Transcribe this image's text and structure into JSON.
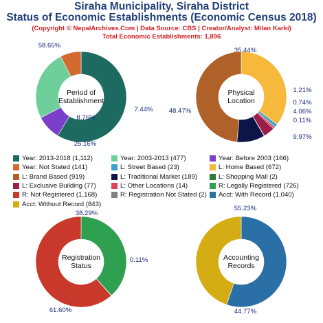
{
  "header": {
    "title_line1": "Siraha Municipality, Siraha District",
    "title_line2": "Status of Economic Establishments (Economic Census 2018)",
    "copyright": "(Copyright © NepalArchives.Com | Data Source: CBS | Creator/Analyst: Milan Karki)",
    "total": "Total Economic Establishments: 1,896"
  },
  "chart_data": [
    {
      "type": "pie",
      "title": "Period of Establishment",
      "center_label": [
        "Period of",
        "Establishment"
      ],
      "slices": [
        {
          "label": "Year: 2013-2018",
          "value": 1112,
          "percent_label": "58.65%",
          "color": "#1d6b60"
        },
        {
          "label": "Year: Before 2003",
          "value": 166,
          "percent_label": "8.76%",
          "color": "#7b3fc9"
        },
        {
          "label": "Year: 2003-2013",
          "value": 477,
          "percent_label": "25.16%",
          "color": "#6fcf9b"
        },
        {
          "label": "Year: Not Stated",
          "value": 141,
          "percent_label": "7.44%",
          "color": "#d26a2d"
        }
      ]
    },
    {
      "type": "pie",
      "title": "Physical Location",
      "center_label": [
        "Physical",
        "Location"
      ],
      "slices": [
        {
          "label": "L: Home Based",
          "value": 672,
          "percent_label": "35.44%",
          "color": "#f6b93b"
        },
        {
          "label": "L: Street Based",
          "value": 23,
          "percent_label": "1.21%",
          "color": "#3ba0cc"
        },
        {
          "label": "L: Other Locations",
          "value": 14,
          "percent_label": "0.74%",
          "color": "#e0405a"
        },
        {
          "label": "L: Exclusive Building",
          "value": 77,
          "percent_label": "4.06%",
          "color": "#9b1f48"
        },
        {
          "label": "L: Shopping Mall",
          "value": 2,
          "percent_label": "0.11%",
          "color": "#2e7d32"
        },
        {
          "label": "L: Traditional Market",
          "value": 189,
          "percent_label": "9.97%",
          "color": "#0c1448"
        },
        {
          "label": "L: Brand Based",
          "value": 919,
          "percent_label": "48.47%",
          "color": "#b0612a"
        }
      ]
    },
    {
      "type": "pie",
      "title": "Registration Status",
      "center_label": [
        "Registration",
        "Status"
      ],
      "slices": [
        {
          "label": "R: Legally Registered",
          "value": 726,
          "percent_label": "38.29%",
          "color": "#2ea04f"
        },
        {
          "label": "R: Registration Not Stated",
          "value": 2,
          "percent_label": "0.11%",
          "color": "#808080"
        },
        {
          "label": "R: Not Registered",
          "value": 1168,
          "percent_label": "61.60%",
          "color": "#c8392b"
        }
      ]
    },
    {
      "type": "pie",
      "title": "Accounting Records",
      "center_label": [
        "Accounting",
        "Records"
      ],
      "slices": [
        {
          "label": "Acct: With Record",
          "value": 1040,
          "percent_label": "55.23%",
          "color": "#2a6fa5"
        },
        {
          "label": "Acct: Without Record",
          "value": 843,
          "percent_label": "44.77%",
          "color": "#d4ac13"
        }
      ]
    }
  ],
  "legend": [
    {
      "text": "Year: 2013-2018 (1,112)",
      "color": "#1d6b60"
    },
    {
      "text": "Year: 2003-2013 (477)",
      "color": "#6fcf9b"
    },
    {
      "text": "Year: Before 2003 (166)",
      "color": "#7b3fc9"
    },
    {
      "text": "Year: Not Stated (141)",
      "color": "#d26a2d"
    },
    {
      "text": "L: Street Based (23)",
      "color": "#3ba0cc"
    },
    {
      "text": "L: Home Based (672)",
      "color": "#f6b93b"
    },
    {
      "text": "L: Brand Based (919)",
      "color": "#b0612a"
    },
    {
      "text": "L: Traditional Market (189)",
      "color": "#0c1448"
    },
    {
      "text": "L: Shopping Mall (2)",
      "color": "#2e7d32"
    },
    {
      "text": "L: Exclusive Building (77)",
      "color": "#9b1f48"
    },
    {
      "text": "L: Other Locations (14)",
      "color": "#e0405a"
    },
    {
      "text": "R: Legally Registered (726)",
      "color": "#2ea04f"
    },
    {
      "text": "R: Not Registered (1,168)",
      "color": "#c8392b"
    },
    {
      "text": "R: Registration Not Stated (2)",
      "color": "#808080"
    },
    {
      "text": "Acct: With Record (1,040)",
      "color": "#2a6fa5"
    },
    {
      "text": "Acct: Without Record (843)",
      "color": "#d4ac13"
    }
  ]
}
